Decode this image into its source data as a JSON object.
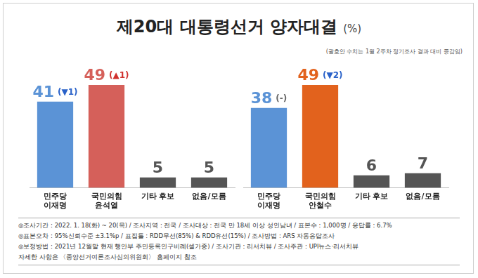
{
  "title": "제20대 대통령선거 양자대결",
  "title_unit": "(%)",
  "subtitle": "(괄호안 수치는 1월 2주차 정기조사 결과 대비 증감임)",
  "notes": [
    "◎조사기간 : 2022. 1. 18(화) ~ 20(목) / 조사지역 : 전국 / 조사대상 : 전국 만 18세 이상 성인남녀 / 표본수 : 1,000명 / 응답률 : 6.7%",
    "◎표본오차 : 95%신뢰수준 ±3.1%p / 표집틀 : RDD무선(85%) & RDD유선(15%) / 조사방법 : ARS 자동응답조사",
    "◎보정방법 : 2021년 12월말 현재 행안부 주민등록인구비례(셀가중) / 조사기관 : 리서치뷰 / 조사주관 : UPI뉴스·리서치뷰",
    "자세한 사항은 〈중앙선거여론조사심의위원회〉 홈페이지 참조"
  ],
  "chart_data": [
    {
      "type": "bar",
      "categories": [
        [
          "민주당",
          "이재명"
        ],
        [
          "국민의힘",
          "윤석열"
        ],
        "기타 후보",
        "없음/모름"
      ],
      "values": [
        41,
        49,
        5,
        5
      ],
      "colors": [
        "#5b93d6",
        "#d5605a",
        "#555555",
        "#555555"
      ],
      "annotations": [
        "(▼1)",
        "(▲1)",
        null,
        null
      ],
      "ylim": [
        0,
        60
      ],
      "tick_labels": "x",
      "grid": false,
      "data_labels": true
    },
    {
      "type": "bar",
      "categories": [
        [
          "민주당",
          "이재명"
        ],
        [
          "국민의힘",
          "안철수"
        ],
        "기타 후보",
        "없음/모름"
      ],
      "values": [
        38,
        49,
        6,
        7
      ],
      "colors": [
        "#5b93d6",
        "#e2621d",
        "#555555",
        "#555555"
      ],
      "annotations": [
        "(-)",
        "(▼2)",
        null,
        null
      ],
      "ylim": [
        0,
        60
      ],
      "tick_labels": "x",
      "grid": false,
      "data_labels": true
    }
  ]
}
